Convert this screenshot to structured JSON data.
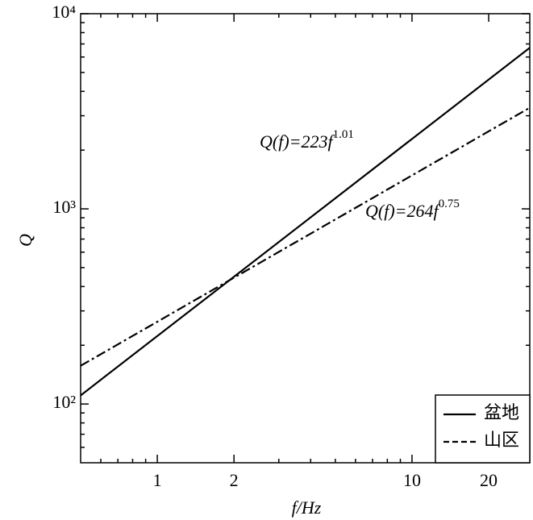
{
  "chart_data": {
    "type": "line",
    "xlabel": "f/Hz",
    "ylabel": "Q",
    "x": [
      0.5,
      29
    ],
    "series": [
      {
        "name": "盆地",
        "color": "#000000",
        "dashed": false,
        "values": [
          110.7,
          6690
        ]
      },
      {
        "name": "山区",
        "color": "#000000",
        "dashed": true,
        "values": [
          157.0,
          3298
        ]
      }
    ],
    "annotations": [
      {
        "text": "Q(f)=223f",
        "exponent": "1.01"
      },
      {
        "text": "Q(f)=264f",
        "exponent": "0.75"
      }
    ],
    "xscale": "log",
    "yscale": "log",
    "xlim": [
      0.5,
      29
    ],
    "ylim": [
      50,
      10000
    ],
    "xticks": [
      1,
      2,
      10,
      20
    ],
    "xminorticks": [
      0.6,
      0.7,
      0.8,
      0.9,
      3,
      4,
      5,
      6,
      7,
      8,
      9
    ],
    "yticks": [
      {
        "value": 100,
        "label": "10²"
      },
      {
        "value": 1000,
        "label": "10³"
      },
      {
        "value": 10000,
        "label": "10⁴"
      }
    ],
    "yminorticks": [
      60,
      70,
      80,
      90,
      200,
      300,
      400,
      500,
      600,
      700,
      800,
      900,
      2000,
      3000,
      4000,
      5000,
      6000,
      7000,
      8000,
      9000
    ],
    "grid": false,
    "legend": "lower right"
  }
}
